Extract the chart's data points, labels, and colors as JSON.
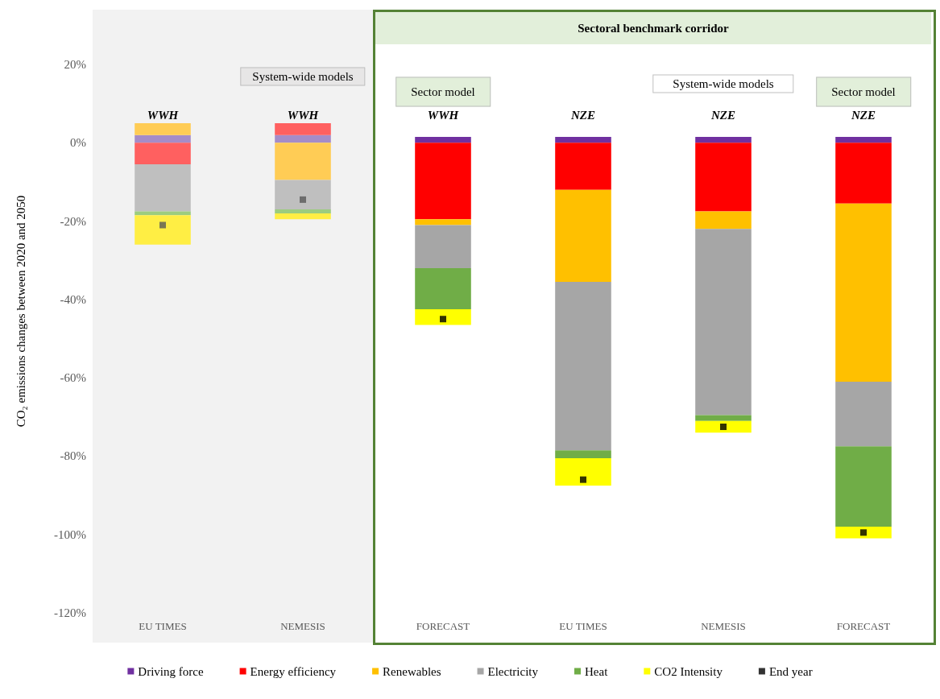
{
  "chart_data": {
    "type": "bar",
    "ylabel": "CO₂ emissions changes between 2020 and 2050",
    "categories": [
      "EU TIMES",
      "NEMESIS",
      "FORECAST",
      "EU TIMES",
      "NEMESIS",
      "FORECAST"
    ],
    "ylim": [
      -120,
      34
    ],
    "yticks": [
      {
        "value": -120,
        "label": "-120%"
      },
      {
        "value": -100,
        "label": "-100%"
      },
      {
        "value": -80,
        "label": "-80%"
      },
      {
        "value": -60,
        "label": "-60%"
      },
      {
        "value": -40,
        "label": "-40%"
      },
      {
        "value": -20,
        "label": "-20%"
      },
      {
        "value": 0,
        "label": "0%"
      },
      {
        "value": 20,
        "label": "20%"
      }
    ],
    "grid": false,
    "legend": "bottom",
    "series": [
      {
        "name": "Driving force",
        "color": "#7030a0",
        "colors": [
          "#a58cc8",
          "#a58cc8",
          "#7030a0",
          "#7030a0",
          "#7030a0",
          "#7030a0"
        ],
        "base": [
          0,
          0,
          0,
          0,
          0,
          0
        ],
        "values": [
          2,
          2,
          1.5,
          1.5,
          1.5,
          1.5
        ]
      },
      {
        "name": "Energy efficiency",
        "color": "#ff0000",
        "colors": [
          "#ff6060",
          "#ff6060",
          "#ff0000",
          "#ff0000",
          "#ff0000",
          "#ff0000"
        ],
        "base": [
          0,
          2,
          0,
          0,
          0,
          0
        ],
        "values": [
          -5.5,
          3,
          -19.5,
          -12,
          -17.5,
          -15.5
        ]
      },
      {
        "name": "Renewables",
        "color": "#ffc000",
        "colors": [
          "#ffcc55",
          "#ffcc55",
          "#ffc000",
          "#ffc000",
          "#ffc000",
          "#ffc000"
        ],
        "base": [
          2,
          0,
          -19.5,
          -12,
          -17.5,
          -15.5
        ],
        "values": [
          3,
          -9.5,
          -1.5,
          -23.5,
          -4.5,
          -45.5
        ]
      },
      {
        "name": "Electricity",
        "color": "#a6a6a6",
        "colors": [
          "#bfbfbf",
          "#bfbfbf",
          "#a6a6a6",
          "#a6a6a6",
          "#a6a6a6",
          "#a6a6a6"
        ],
        "base": [
          -5.5,
          -9.5,
          -21,
          -35.5,
          -22,
          -61
        ],
        "values": [
          -12,
          -7.5,
          -11,
          -43,
          -47.5,
          -16.5
        ]
      },
      {
        "name": "Heat",
        "color": "#70ad47",
        "colors": [
          "#9ccc7f",
          "#9ccc7f",
          "#70ad47",
          "#70ad47",
          "#70ad47",
          "#70ad47"
        ],
        "base": [
          -17.5,
          -17,
          -32,
          -78.5,
          -69.5,
          -77.5
        ],
        "values": [
          -1,
          -1,
          -10.5,
          -2,
          -1.5,
          -20.5
        ]
      },
      {
        "name": "CO2 Intensity",
        "color": "#ffff00",
        "colors": [
          "#ffee44",
          "#ffee44",
          "#ffff00",
          "#ffff00",
          "#ffff00",
          "#ffff00"
        ],
        "base": [
          -18.5,
          -18,
          -42.5,
          -80.5,
          -71,
          -98
        ],
        "values": [
          -7.5,
          -1.5,
          -4,
          -7,
          -3,
          -3
        ]
      },
      {
        "name": "End year",
        "type": "scatter",
        "marker": "square",
        "color": "#000000",
        "colors": [
          "#595959",
          "#595959",
          "#000000",
          "#000000",
          "#000000",
          "#000000"
        ],
        "values": [
          -21,
          -14.5,
          -45,
          -86,
          -72.5,
          -99.5
        ]
      }
    ],
    "bands": [
      {
        "axis": "x",
        "from": "EU TIMES",
        "to": "NEMESIS",
        "color": "#f2f2f2"
      }
    ],
    "annotations": [
      "Sectoral benchmark corridor",
      "System-wide models",
      "Sector model",
      "System-wide models",
      "Sector model",
      "WWH",
      "WWH",
      "WWH",
      "NZE",
      "NZE",
      "NZE"
    ]
  }
}
